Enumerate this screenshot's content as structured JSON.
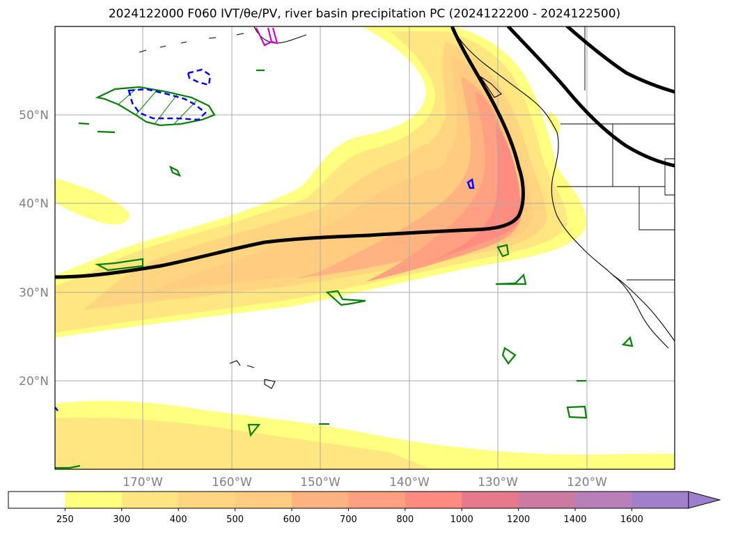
{
  "title": "2024122000 F060 IVT/θe/PV, river basin precipitation PC (2024122200 - 2024122500)",
  "map": {
    "lon_range": [
      -180,
      -110
    ],
    "lat_range": [
      10,
      60
    ],
    "lat_labels": [
      "20°N",
      "30°N",
      "40°N",
      "50°N"
    ],
    "lon_labels": [
      "170°W",
      "160°W",
      "150°W",
      "140°W",
      "130°W",
      "120°W"
    ]
  },
  "colorbar": {
    "ticks": [
      "250",
      "300",
      "400",
      "500",
      "600",
      "700",
      "800",
      "1000",
      "1200",
      "1400",
      "1600"
    ],
    "colors": [
      "#ffffff",
      "#ffff80",
      "#ffe680",
      "#ffd580",
      "#ffcc80",
      "#ffb380",
      "#ffa080",
      "#ff8c80",
      "#e67a8c",
      "#cc7aa0",
      "#b880b8",
      "#a080c8"
    ],
    "extend_color": "#9b7fcc"
  }
}
